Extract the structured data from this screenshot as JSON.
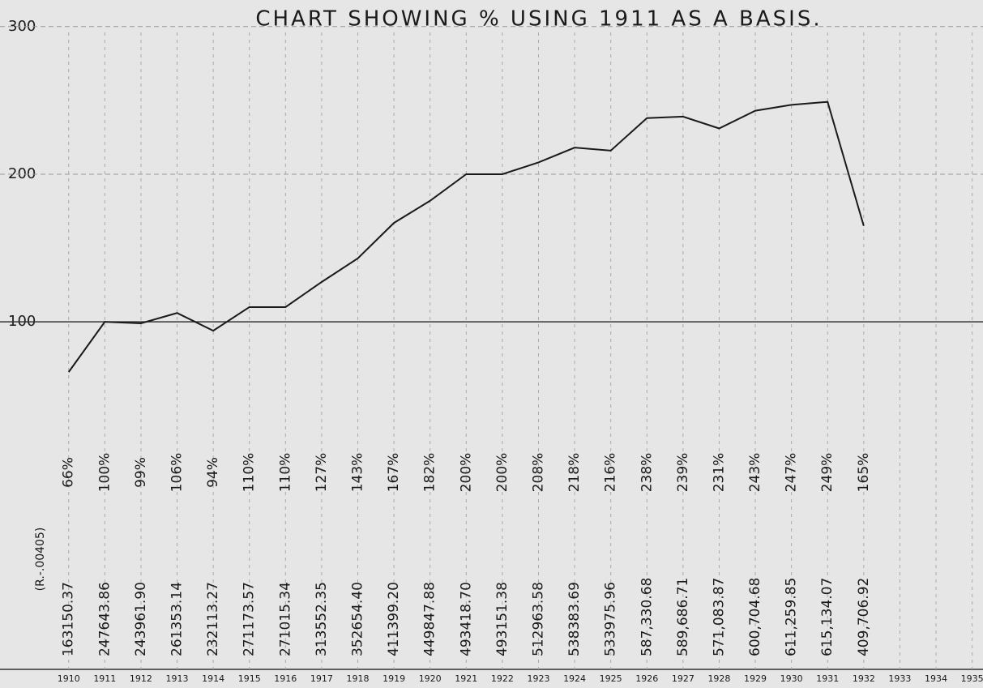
{
  "chart_data": {
    "type": "line",
    "title": "CHART SHOWING % USING 1911 AS A BASIS.",
    "x": [
      1910,
      1911,
      1912,
      1913,
      1914,
      1915,
      1916,
      1917,
      1918,
      1919,
      1920,
      1921,
      1922,
      1923,
      1924,
      1925,
      1926,
      1927,
      1928,
      1929,
      1930,
      1931,
      1932
    ],
    "values": [
      66,
      100,
      99,
      106,
      94,
      110,
      110,
      127,
      143,
      167,
      182,
      200,
      200,
      208,
      218,
      216,
      238,
      239,
      231,
      243,
      247,
      249,
      165
    ],
    "value_labels": [
      "66%",
      "100%",
      "99%",
      "106%",
      "94%",
      "110%",
      "110%",
      "127%",
      "143%",
      "167%",
      "182%",
      "200%",
      "200%",
      "208%",
      "218%",
      "216%",
      "238%",
      "239%",
      "231%",
      "243%",
      "247%",
      "249%",
      "165%"
    ],
    "amounts": [
      "163150.37",
      "247643.86",
      "243961.90",
      "261353.14",
      "232113.27",
      "271173.57",
      "271015.34",
      "313552.35",
      "352654.40",
      "411399.20",
      "449847.88",
      "493418.70",
      "493151.38",
      "512963.58",
      "538383.69",
      "533975.96",
      "587,330.68",
      "589,686.71",
      "571,083.87",
      "600,704.68",
      "611,259.85",
      "615,134.07",
      "409,706.92"
    ],
    "note": "(R.-.00405)",
    "color": "#1a1a1a",
    "xlim": [
      1908.1,
      1935.3
    ],
    "xticks": [
      1910,
      1911,
      1912,
      1913,
      1914,
      1915,
      1916,
      1917,
      1918,
      1919,
      1920,
      1921,
      1922,
      1923,
      1924,
      1925,
      1926,
      1927,
      1928,
      1929,
      1930,
      1931,
      1932,
      1933,
      1934,
      1935
    ],
    "ylim": [
      -148,
      318
    ],
    "yticks": [
      100,
      200,
      300
    ],
    "grid": true
  }
}
